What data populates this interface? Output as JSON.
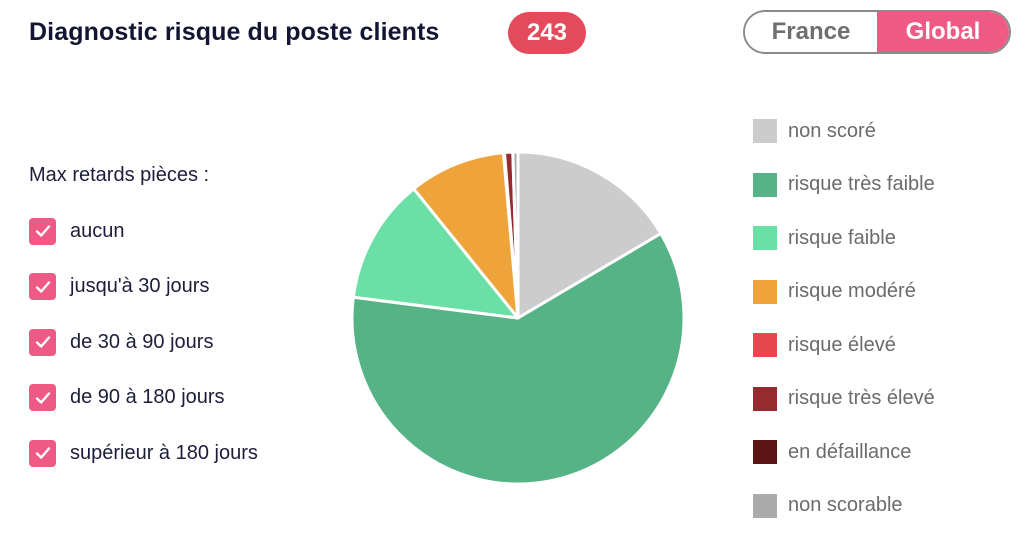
{
  "header": {
    "title": "Diagnostic risque du poste clients",
    "count": "243"
  },
  "toggle": {
    "options": [
      {
        "label": "France",
        "active": false
      },
      {
        "label": "Global",
        "active": true
      }
    ]
  },
  "filters": {
    "title": "Max retards pièces :",
    "items": [
      {
        "label": "aucun",
        "checked": true
      },
      {
        "label": "jusqu'à 30 jours",
        "checked": true
      },
      {
        "label": "de 30 à 90 jours",
        "checked": true
      },
      {
        "label": "de 90 à 180 jours",
        "checked": true
      },
      {
        "label": "supérieur à 180 jours",
        "checked": true
      }
    ]
  },
  "legend": {
    "items": [
      {
        "label": "non scoré",
        "color": "#cccccc"
      },
      {
        "label": "risque très faible",
        "color": "#55b386"
      },
      {
        "label": "risque faible",
        "color": "#6ae0a7"
      },
      {
        "label": "risque modéré",
        "color": "#efa33b"
      },
      {
        "label": "risque élevé",
        "color": "#e5484d"
      },
      {
        "label": "risque très élevé",
        "color": "#962b2f"
      },
      {
        "label": "en défaillance",
        "color": "#5c1414"
      },
      {
        "label": "non scorable",
        "color": "#aaaaaa"
      }
    ]
  },
  "chart_data": {
    "type": "pie",
    "categories": [
      "non scoré",
      "risque très faible",
      "risque faible",
      "risque modéré",
      "risque élevé",
      "risque très élevé",
      "en défaillance",
      "non scorable"
    ],
    "values": [
      16.5,
      60.5,
      12.2,
      9.4,
      0.1,
      0.8,
      0,
      0.5
    ],
    "legend_position": "right"
  }
}
